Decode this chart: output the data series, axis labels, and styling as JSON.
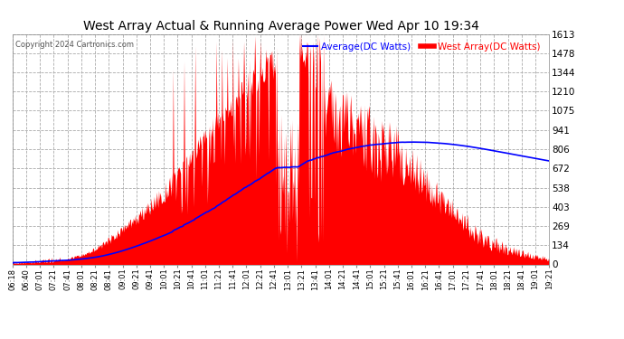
{
  "title": "West Array Actual & Running Average Power Wed Apr 10 19:34",
  "copyright": "Copyright 2024 Cartronics.com",
  "legend_avg": "Average(DC Watts)",
  "legend_west": "West Array(DC Watts)",
  "ylabel_values": [
    0.0,
    134.4,
    268.8,
    403.2,
    537.5,
    671.9,
    806.3,
    940.7,
    1075.1,
    1209.5,
    1343.9,
    1478.3,
    1612.6
  ],
  "ymax": 1612.6,
  "ymin": 0.0,
  "bg_color": "#ffffff",
  "plot_bg_color": "#ffffff",
  "title_color": "#000000",
  "grid_color": "#aaaaaa",
  "west_color": "#ff0000",
  "avg_color": "#0000ff",
  "ylabel_color": "#000000",
  "xlabel_color": "#000000",
  "x_ticks": [
    "06:18",
    "06:40",
    "07:01",
    "07:21",
    "07:41",
    "08:01",
    "08:21",
    "08:41",
    "09:01",
    "09:21",
    "09:41",
    "10:01",
    "10:21",
    "10:41",
    "11:01",
    "11:21",
    "11:41",
    "12:01",
    "12:21",
    "12:41",
    "13:01",
    "13:21",
    "13:41",
    "14:01",
    "14:21",
    "14:41",
    "15:01",
    "15:21",
    "15:41",
    "16:01",
    "16:21",
    "16:41",
    "17:01",
    "17:21",
    "17:41",
    "18:01",
    "18:21",
    "18:41",
    "19:01",
    "19:21"
  ]
}
